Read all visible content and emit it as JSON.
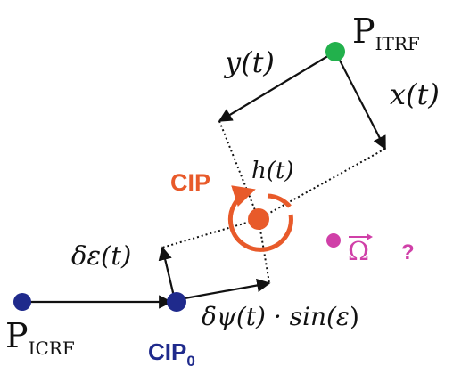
{
  "points": {
    "p_itrf": {
      "main": "P",
      "sub": "ITRF",
      "color": "#22b14c"
    },
    "p_icrf": {
      "main": "P",
      "sub": "ICRF",
      "color": "#1f2a8c"
    },
    "cip0": {
      "main": "CIP",
      "sub": "0",
      "color": "#1f2a8c"
    },
    "cip": {
      "label": "CIP",
      "color": "#e85a2a"
    },
    "omega": {
      "symbol": "Ω",
      "question": "?",
      "color": "#d040a8"
    }
  },
  "labels": {
    "y_t": "y(t)",
    "x_t": "x(t)",
    "h_t": "h(t)",
    "delta_eps": "δε(t)",
    "delta_psi_main": "δψ(t) · sin(",
    "delta_psi_eps": "ε",
    "delta_psi_close": ")"
  },
  "colors": {
    "line": "#111111",
    "rotation_arrow": "#e85a2a"
  }
}
